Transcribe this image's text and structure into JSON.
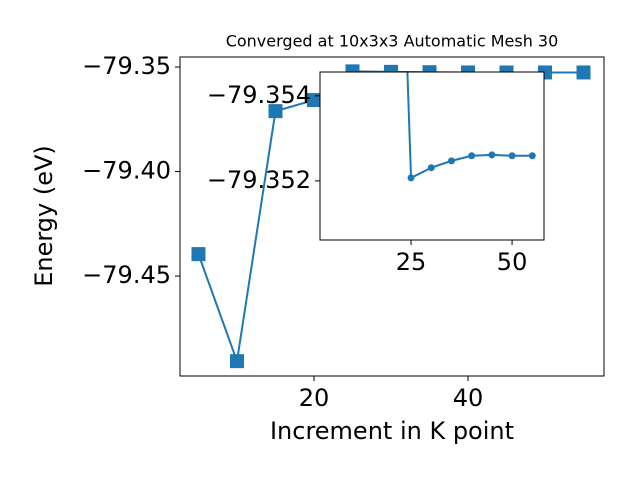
{
  "chart_data": {
    "type": "line",
    "title": "Converged at 10x3x3 Automatic Mesh 30",
    "x_label": "Increment in K point",
    "y_label": "Energy (eV)",
    "x": [
      5,
      10,
      15,
      20,
      25,
      30,
      35,
      40,
      45,
      50,
      55
    ],
    "series": [
      {
        "color": "#1f77b4",
        "values": [
          -79.4395,
          -79.4907,
          -79.3711,
          -79.3658,
          -79.35207,
          -79.35231,
          -79.35247,
          -79.35259,
          -79.35261,
          -79.35259,
          -79.35259
        ]
      }
    ],
    "xlim": [
      2.6,
      57.66
    ],
    "ylim": [
      -79.4978,
      -79.3452
    ],
    "xticks": [
      20,
      40
    ],
    "yticks": [
      {
        "value": -79.45,
        "label": "−79.45"
      },
      {
        "value": -79.4,
        "label": "−79.40"
      },
      {
        "value": -79.35,
        "label": "−79.35"
      }
    ],
    "inset": {
      "xlim": [
        2.47,
        57.9
      ],
      "ylim": [
        -79.35061,
        -79.35456
      ],
      "xticks": [
        25,
        50
      ],
      "yticks": [
        {
          "value": -79.354,
          "label": "−79.354"
        },
        {
          "value": -79.352,
          "label": "−79.352"
        }
      ]
    }
  }
}
